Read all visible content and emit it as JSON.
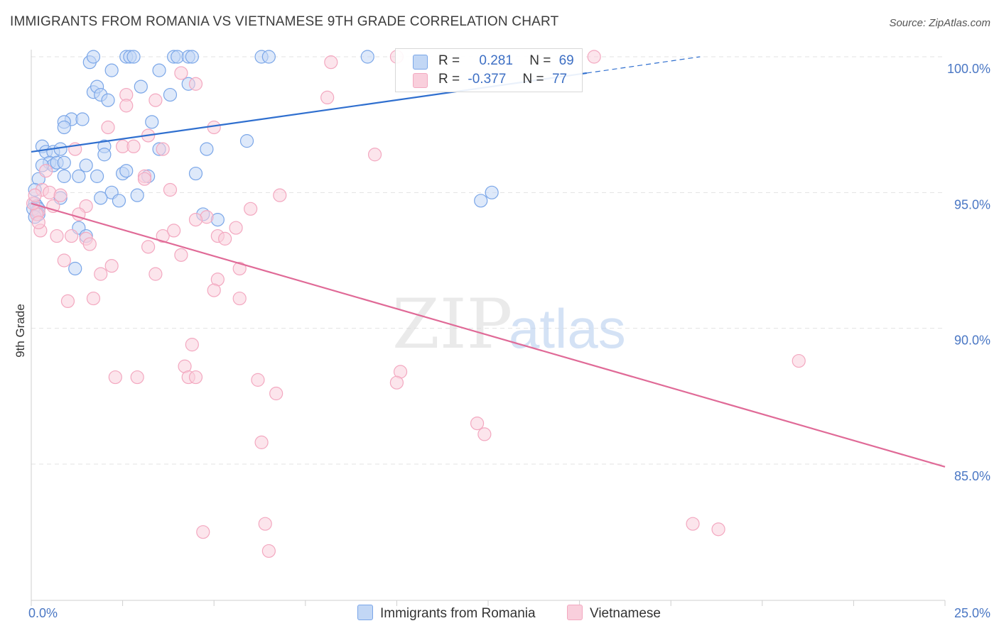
{
  "title": "IMMIGRANTS FROM ROMANIA VS VIETNAMESE 9TH GRADE CORRELATION CHART",
  "source": "Source: ZipAtlas.com",
  "watermark": {
    "zip": "ZIP",
    "atlas": "atlas"
  },
  "legend_top": [
    {
      "r_label": "R =",
      "r_value": "0.281",
      "n_label": "N =",
      "n_value": "69"
    },
    {
      "r_label": "R =",
      "r_value": "-0.377",
      "n_label": "N =",
      "n_value": "77"
    }
  ],
  "chart_data": {
    "type": "scatter",
    "title": "IMMIGRANTS FROM ROMANIA VS VIETNAMESE 9TH GRADE CORRELATION CHART",
    "xlabel": "",
    "ylabel": "9th Grade",
    "xlim": [
      0,
      25
    ],
    "ylim": [
      80.5,
      100.5
    ],
    "x_tick_labels": [
      "0.0%",
      "25.0%"
    ],
    "y_ticks": [
      85,
      90,
      95,
      100
    ],
    "y_tick_labels": [
      "85.0%",
      "90.0%",
      "95.0%",
      "100.0%"
    ],
    "grid": true,
    "legend": "bottom",
    "series": [
      {
        "name": "Immigrants from Romania",
        "color": "#7aa6e8",
        "line_color": "#2f6fcf",
        "trend": {
          "x": [
            0,
            15.2
          ],
          "y": [
            96.5,
            99.4
          ],
          "dashed_to": [
            18.3,
            100.0
          ]
        },
        "points": [
          [
            1.6,
            99.8
          ],
          [
            1.7,
            100.0
          ],
          [
            2.6,
            100.0
          ],
          [
            2.7,
            100.0
          ],
          [
            2.8,
            100.0
          ],
          [
            3.9,
            100.0
          ],
          [
            4.0,
            100.0
          ],
          [
            4.3,
            100.0
          ],
          [
            4.4,
            100.0
          ],
          [
            6.3,
            100.0
          ],
          [
            6.5,
            100.0
          ],
          [
            9.2,
            100.0
          ],
          [
            2.2,
            99.5
          ],
          [
            3.5,
            99.5
          ],
          [
            1.7,
            98.7
          ],
          [
            1.8,
            98.9
          ],
          [
            3.0,
            98.9
          ],
          [
            1.9,
            98.6
          ],
          [
            2.1,
            98.4
          ],
          [
            3.8,
            98.6
          ],
          [
            4.3,
            99.0
          ],
          [
            1.1,
            97.7
          ],
          [
            0.9,
            97.6
          ],
          [
            1.4,
            97.7
          ],
          [
            0.9,
            97.4
          ],
          [
            3.3,
            97.6
          ],
          [
            5.9,
            96.9
          ],
          [
            0.3,
            96.7
          ],
          [
            0.4,
            96.5
          ],
          [
            0.6,
            96.5
          ],
          [
            0.8,
            96.6
          ],
          [
            2.0,
            96.7
          ],
          [
            2.0,
            96.4
          ],
          [
            3.5,
            96.6
          ],
          [
            4.8,
            96.6
          ],
          [
            0.5,
            96.1
          ],
          [
            0.6,
            96.0
          ],
          [
            0.7,
            96.1
          ],
          [
            0.9,
            96.1
          ],
          [
            1.5,
            96.0
          ],
          [
            0.3,
            96.0
          ],
          [
            1.8,
            95.6
          ],
          [
            2.5,
            95.7
          ],
          [
            3.2,
            95.6
          ],
          [
            4.5,
            95.7
          ],
          [
            0.9,
            95.6
          ],
          [
            1.3,
            95.6
          ],
          [
            0.2,
            95.5
          ],
          [
            0.1,
            95.1
          ],
          [
            2.2,
            95.0
          ],
          [
            12.6,
            95.0
          ],
          [
            0.8,
            94.8
          ],
          [
            1.9,
            94.8
          ],
          [
            2.4,
            94.7
          ],
          [
            2.9,
            94.9
          ],
          [
            12.3,
            94.7
          ],
          [
            0.1,
            94.6
          ],
          [
            0.15,
            94.5
          ],
          [
            0.2,
            94.4
          ],
          [
            0.15,
            94.3
          ],
          [
            4.7,
            94.2
          ],
          [
            5.1,
            94.0
          ],
          [
            0.2,
            94.2
          ],
          [
            1.3,
            93.7
          ],
          [
            1.5,
            93.4
          ],
          [
            1.2,
            92.2
          ],
          [
            0.05,
            94.4
          ],
          [
            0.1,
            94.1
          ],
          [
            2.6,
            95.8
          ]
        ]
      },
      {
        "name": "Vietnamese",
        "color": "#f3a8c0",
        "line_color": "#e06a97",
        "trend": {
          "x": [
            0,
            25
          ],
          "y": [
            94.6,
            84.9
          ]
        },
        "points": [
          [
            4.1,
            99.4
          ],
          [
            8.2,
            99.8
          ],
          [
            10.0,
            100.0
          ],
          [
            15.4,
            100.0
          ],
          [
            4.5,
            99.0
          ],
          [
            2.6,
            98.6
          ],
          [
            2.6,
            98.2
          ],
          [
            3.4,
            98.4
          ],
          [
            8.1,
            98.5
          ],
          [
            2.1,
            97.4
          ],
          [
            5.0,
            97.4
          ],
          [
            3.2,
            97.1
          ],
          [
            2.5,
            96.7
          ],
          [
            2.8,
            96.7
          ],
          [
            1.2,
            96.6
          ],
          [
            3.6,
            96.6
          ],
          [
            9.4,
            96.4
          ],
          [
            0.4,
            95.8
          ],
          [
            3.1,
            95.6
          ],
          [
            0.3,
            95.1
          ],
          [
            0.5,
            95.0
          ],
          [
            3.8,
            95.1
          ],
          [
            0.8,
            94.9
          ],
          [
            6.8,
            94.9
          ],
          [
            0.6,
            94.5
          ],
          [
            1.5,
            94.5
          ],
          [
            6.0,
            94.4
          ],
          [
            0.2,
            94.3
          ],
          [
            1.3,
            94.2
          ],
          [
            4.8,
            94.1
          ],
          [
            4.5,
            94.0
          ],
          [
            0.15,
            94.2
          ],
          [
            0.25,
            93.6
          ],
          [
            1.1,
            93.4
          ],
          [
            0.7,
            93.4
          ],
          [
            3.6,
            93.4
          ],
          [
            5.1,
            93.4
          ],
          [
            5.3,
            93.3
          ],
          [
            1.5,
            93.3
          ],
          [
            1.6,
            93.1
          ],
          [
            3.2,
            93.0
          ],
          [
            5.6,
            93.7
          ],
          [
            3.9,
            93.6
          ],
          [
            0.9,
            92.5
          ],
          [
            4.1,
            92.7
          ],
          [
            2.2,
            92.3
          ],
          [
            1.9,
            92.0
          ],
          [
            3.4,
            92.0
          ],
          [
            5.7,
            92.2
          ],
          [
            5.1,
            91.8
          ],
          [
            5.0,
            91.4
          ],
          [
            1.0,
            91.0
          ],
          [
            1.7,
            91.1
          ],
          [
            5.7,
            91.1
          ],
          [
            4.4,
            89.4
          ],
          [
            4.2,
            88.6
          ],
          [
            4.3,
            88.2
          ],
          [
            4.5,
            88.2
          ],
          [
            2.3,
            88.2
          ],
          [
            2.9,
            88.2
          ],
          [
            6.2,
            88.1
          ],
          [
            6.7,
            87.6
          ],
          [
            10.1,
            88.4
          ],
          [
            10.0,
            88.0
          ],
          [
            21.0,
            88.8
          ],
          [
            12.2,
            86.5
          ],
          [
            12.4,
            86.1
          ],
          [
            6.3,
            85.8
          ],
          [
            6.4,
            82.8
          ],
          [
            18.1,
            82.8
          ],
          [
            18.8,
            82.6
          ],
          [
            4.7,
            82.5
          ],
          [
            6.5,
            81.8
          ],
          [
            0.05,
            94.6
          ],
          [
            0.1,
            94.9
          ],
          [
            3.1,
            95.5
          ],
          [
            0.2,
            93.9
          ]
        ]
      }
    ]
  }
}
